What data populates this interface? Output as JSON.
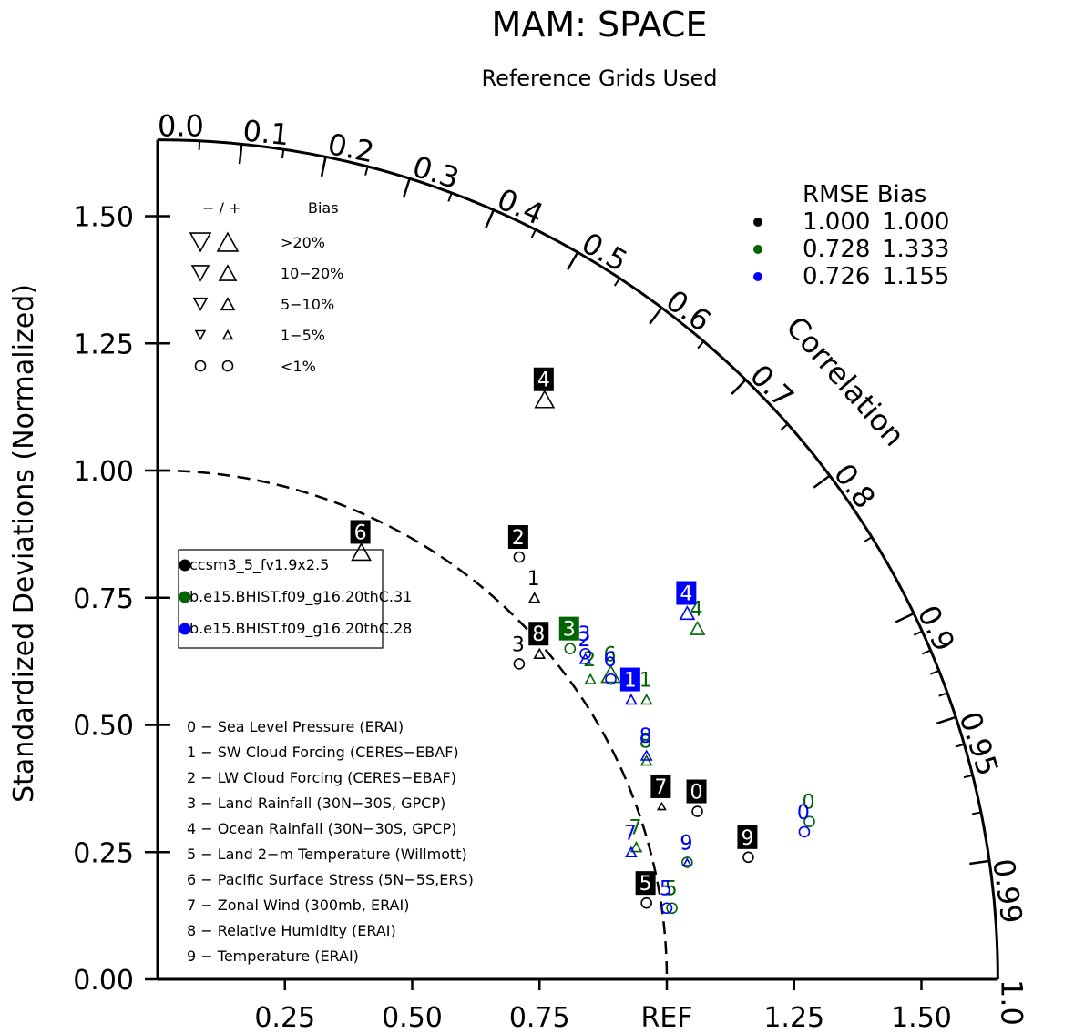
{
  "chart_data": {
    "type": "taylor",
    "title": "MAM: SPACE",
    "subtitle": "Reference Grids Used",
    "ylabel": "Standardized Deviations (Normalized)",
    "x_ticks": [
      "0.25",
      "0.50",
      "0.75",
      "REF",
      "1.25",
      "1.50"
    ],
    "y_ticks": [
      "0.00",
      "0.25",
      "0.50",
      "0.75",
      "1.00",
      "1.25",
      "1.50"
    ],
    "correlation_label": "Correlation",
    "correlation_ticks": [
      "0.0",
      "0.1",
      "0.2",
      "0.3",
      "0.4",
      "0.5",
      "0.6",
      "0.7",
      "0.8",
      "0.9",
      "0.95",
      "0.99",
      "1.0"
    ],
    "bias_legend": {
      "header_sign": "− / +",
      "header_bias": "Bias",
      "rows": [
        ">20%",
        "10−20%",
        "5−10%",
        "1−5%",
        "<1%"
      ]
    },
    "stats_header": "RMSE  Bias",
    "stats": [
      {
        "color": "#000000",
        "rmse": "1.000",
        "bias": "1.000"
      },
      {
        "color": "#006400",
        "rmse": "0.728",
        "bias": "1.333"
      },
      {
        "color": "#0000ff",
        "rmse": "0.726",
        "bias": "1.155"
      }
    ],
    "series": [
      {
        "name": "ccsm3_5_fv1.9x2.5",
        "color": "#000000"
      },
      {
        "name": "b.e15.BHIST.f09_g16.20thC.31",
        "color": "#006400"
      },
      {
        "name": "b.e15.BHIST.f09_g16.20thC.28",
        "color": "#0000ff"
      }
    ],
    "cases": [
      "0 − Sea Level Pressure (ERAI)",
      "1 − SW Cloud Forcing (CERES−EBAF)",
      "2 − LW Cloud Forcing (CERES−EBAF)",
      "3 − Land Rainfall (30N−30S, GPCP)",
      "4 − Ocean Rainfall (30N−30S, GPCP)",
      "5 − Land 2−m Temperature (Willmott)",
      "6 − Pacific Surface Stress (5N−5S,ERS)",
      "7 − Zonal Wind (300mb, ERAI)",
      "8 − Relative Humidity (ERAI)",
      "9 − Temperature (ERAI)"
    ],
    "points": [
      {
        "series": 0,
        "case": "0",
        "x": 1.06,
        "y": 0.33,
        "marker": "circle"
      },
      {
        "series": 0,
        "case": "1",
        "x": 0.74,
        "y": 0.75,
        "marker": "tri-up-small"
      },
      {
        "series": 0,
        "case": "2",
        "x": 0.71,
        "y": 0.83,
        "marker": "circle"
      },
      {
        "series": 0,
        "case": "3",
        "x": 0.71,
        "y": 0.62,
        "marker": "circle"
      },
      {
        "series": 0,
        "case": "4",
        "x": 0.76,
        "y": 1.14,
        "marker": "tri-up-large"
      },
      {
        "series": 0,
        "case": "5",
        "x": 0.96,
        "y": 0.15,
        "marker": "circle"
      },
      {
        "series": 0,
        "case": "6",
        "x": 0.4,
        "y": 0.84,
        "marker": "tri-up-large"
      },
      {
        "series": 0,
        "case": "7",
        "x": 0.99,
        "y": 0.34,
        "marker": "tri-up-tiny"
      },
      {
        "series": 0,
        "case": "8",
        "x": 0.75,
        "y": 0.64,
        "marker": "tri-up-small"
      },
      {
        "series": 0,
        "case": "9",
        "x": 1.16,
        "y": 0.24,
        "marker": "circle"
      },
      {
        "series": 1,
        "case": "0",
        "x": 1.28,
        "y": 0.31,
        "marker": "circle"
      },
      {
        "series": 1,
        "case": "1",
        "x": 0.96,
        "y": 0.55,
        "marker": "tri-up-small"
      },
      {
        "series": 1,
        "case": "2",
        "x": 0.85,
        "y": 0.59,
        "marker": "tri-up-small"
      },
      {
        "series": 1,
        "case": "3",
        "x": 0.81,
        "y": 0.65,
        "marker": "circle"
      },
      {
        "series": 1,
        "case": "4",
        "x": 1.06,
        "y": 0.69,
        "marker": "tri-up-medium"
      },
      {
        "series": 1,
        "case": "5",
        "x": 1.01,
        "y": 0.14,
        "marker": "circle"
      },
      {
        "series": 1,
        "case": "6",
        "x": 0.89,
        "y": 0.6,
        "marker": "tri-up-large"
      },
      {
        "series": 1,
        "case": "7",
        "x": 0.94,
        "y": 0.26,
        "marker": "tri-up-small"
      },
      {
        "series": 1,
        "case": "8",
        "x": 0.96,
        "y": 0.43,
        "marker": "tri-up-small"
      },
      {
        "series": 1,
        "case": "9",
        "x": 1.04,
        "y": 0.23,
        "marker": "circle"
      },
      {
        "series": 2,
        "case": "0",
        "x": 1.27,
        "y": 0.29,
        "marker": "circle"
      },
      {
        "series": 2,
        "case": "1",
        "x": 0.93,
        "y": 0.55,
        "marker": "tri-up-small"
      },
      {
        "series": 2,
        "case": "2",
        "x": 0.84,
        "y": 0.63,
        "marker": "tri-up-small"
      },
      {
        "series": 2,
        "case": "3",
        "x": 0.84,
        "y": 0.64,
        "marker": "circle"
      },
      {
        "series": 2,
        "case": "4",
        "x": 1.04,
        "y": 0.72,
        "marker": "tri-up-medium"
      },
      {
        "series": 2,
        "case": "5",
        "x": 1.0,
        "y": 0.14,
        "marker": "circle"
      },
      {
        "series": 2,
        "case": "6",
        "x": 0.89,
        "y": 0.59,
        "marker": "circle"
      },
      {
        "series": 2,
        "case": "7",
        "x": 0.93,
        "y": 0.25,
        "marker": "tri-up-small"
      },
      {
        "series": 2,
        "case": "8",
        "x": 0.96,
        "y": 0.44,
        "marker": "tri-up-small"
      },
      {
        "series": 2,
        "case": "9",
        "x": 1.04,
        "y": 0.23,
        "marker": "tri-up-tiny"
      }
    ],
    "boxed_labels": [
      {
        "series": 0,
        "cases": [
          "0",
          "2",
          "4",
          "5",
          "6",
          "7",
          "8",
          "9"
        ]
      },
      {
        "series": 1,
        "cases": [
          "3"
        ]
      },
      {
        "series": 2,
        "cases": [
          "1",
          "4"
        ]
      }
    ],
    "xlim": [
      0,
      1.65
    ],
    "ylim": [
      0,
      1.65
    ],
    "reference_arc": 1.0
  }
}
